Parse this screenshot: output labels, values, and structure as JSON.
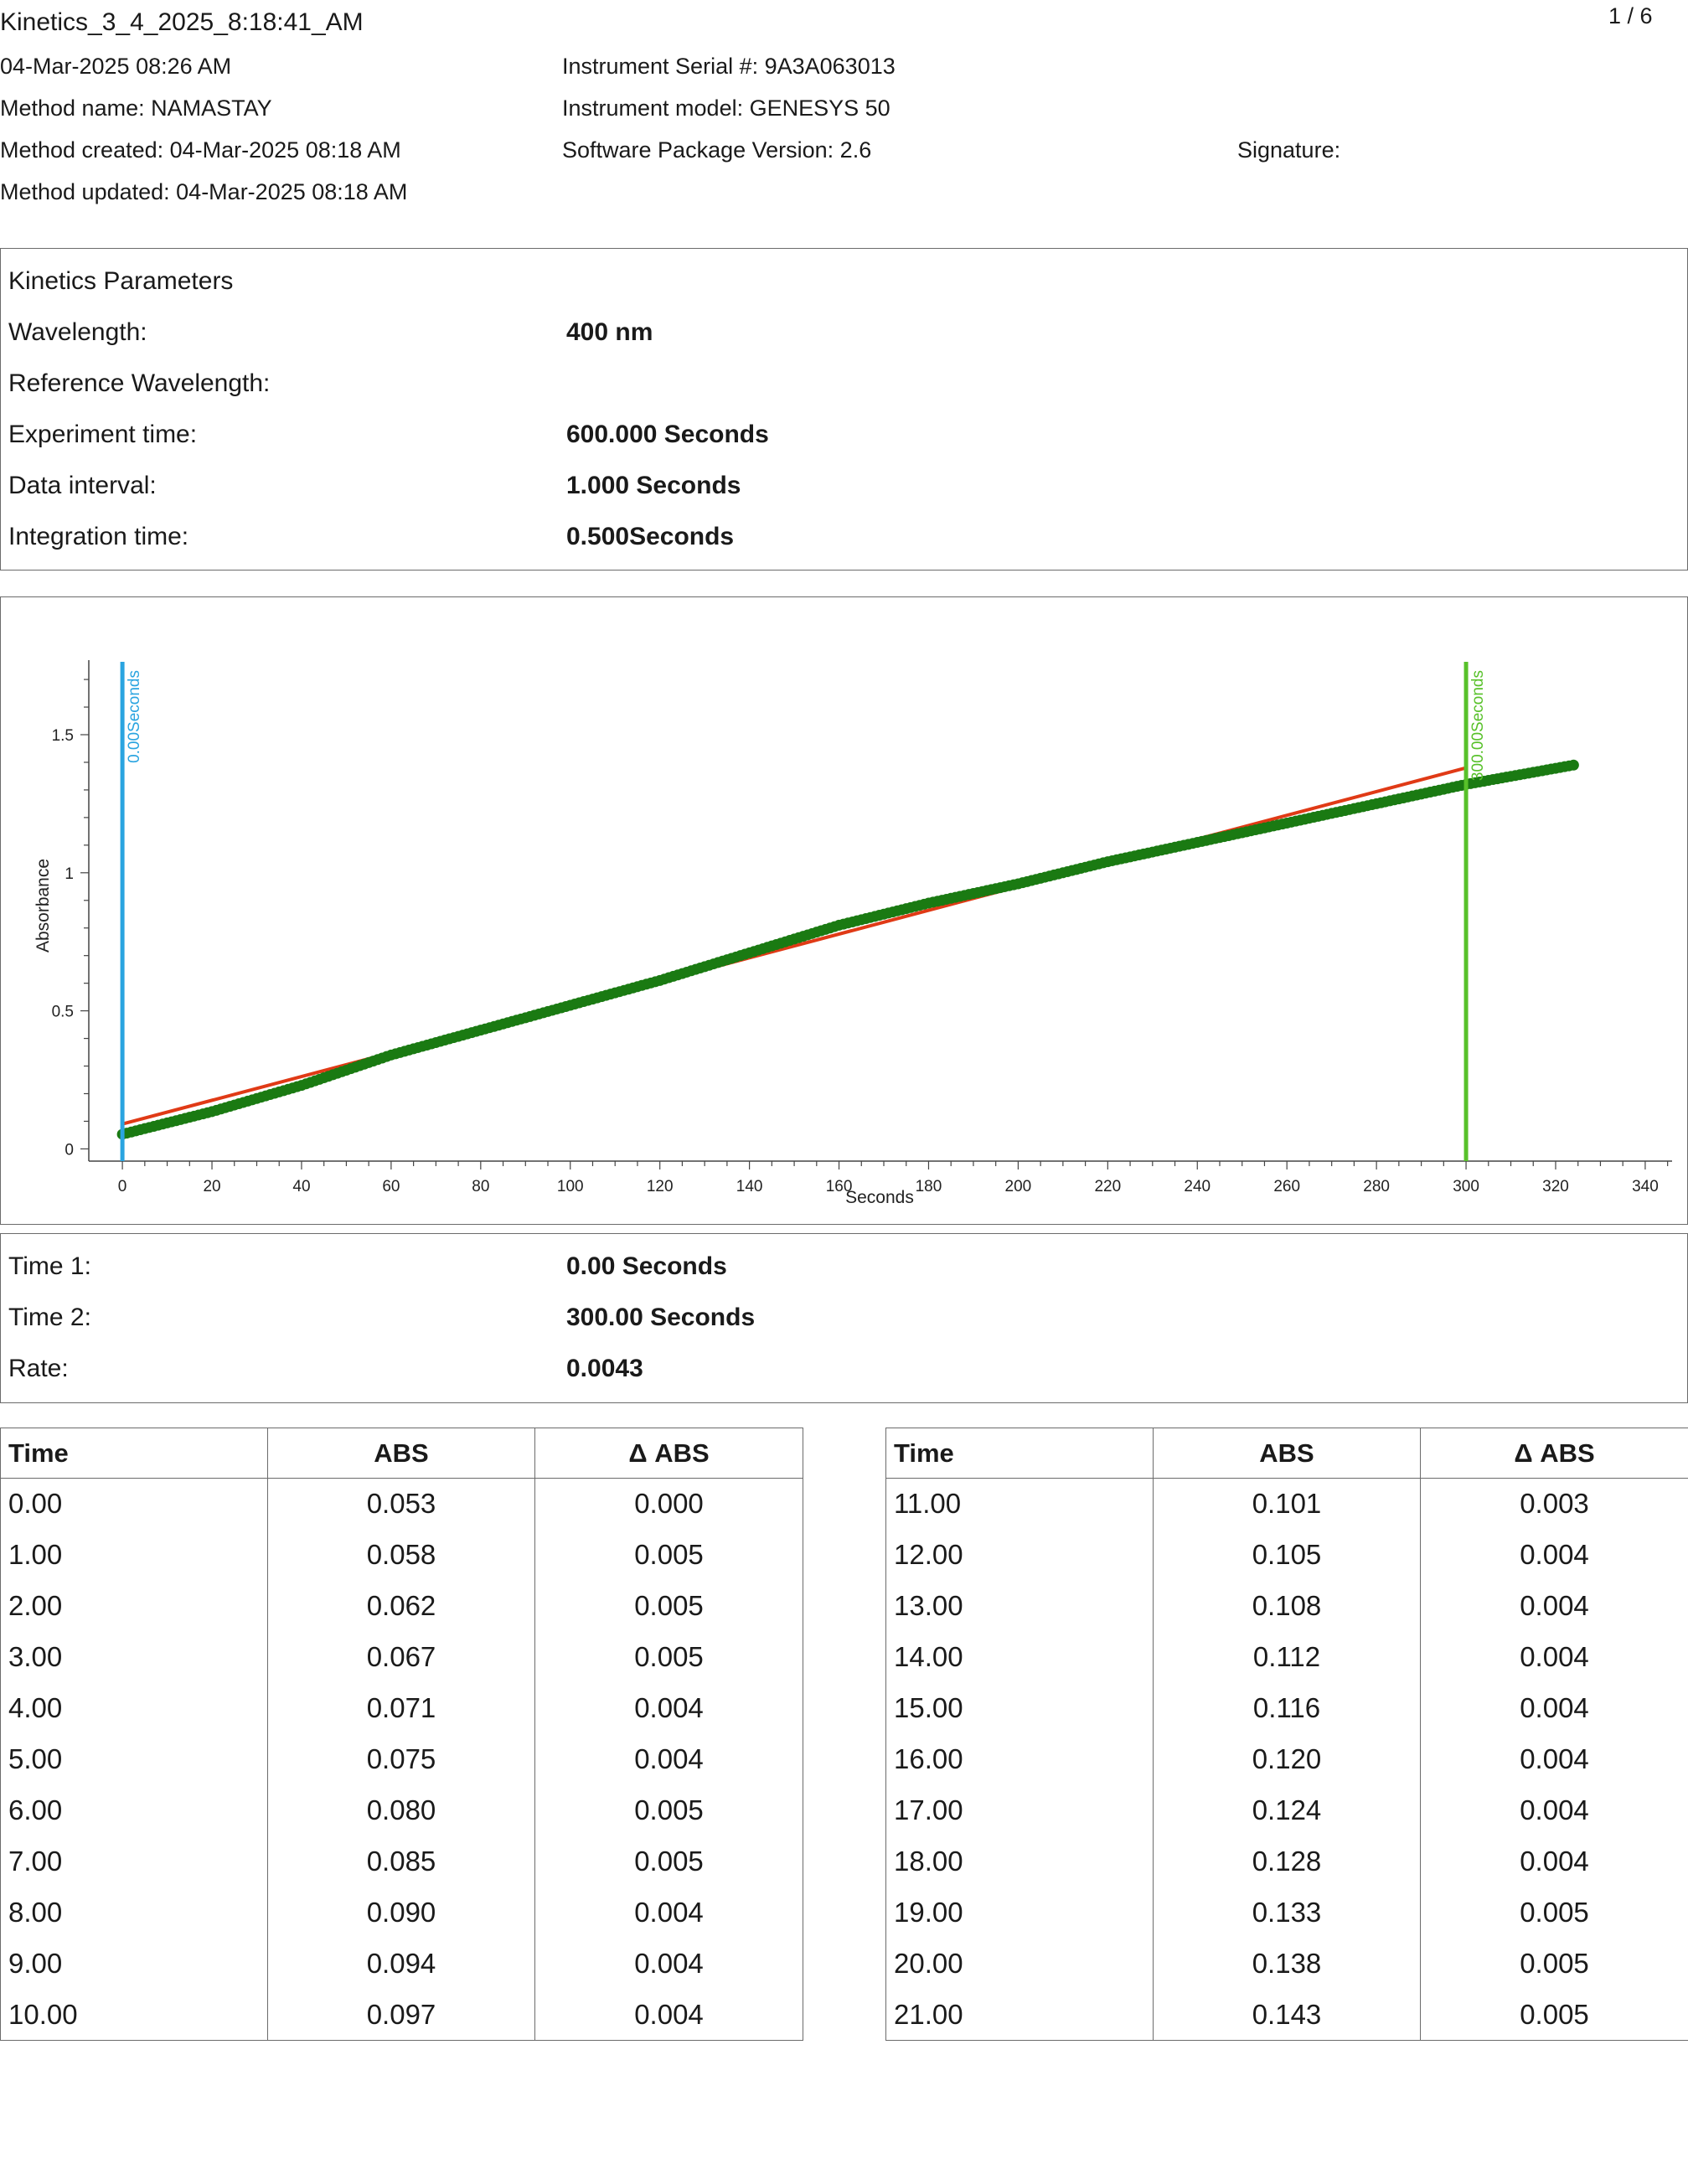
{
  "header": {
    "file_title": "Kinetics_3_4_2025_8:18:41_AM",
    "page_number": "1 / 6",
    "datetime": "04-Mar-2025 08:26 AM",
    "method_name": "Method name: NAMASTAY",
    "method_created": "Method created: 04-Mar-2025 08:18 AM",
    "method_updated": "Method updated: 04-Mar-2025 08:18 AM",
    "instrument_serial": "Instrument Serial #: 9A3A063013",
    "instrument_model": "Instrument model: GENESYS 50",
    "software_version": "Software Package Version: 2.6",
    "signature_label": "Signature:"
  },
  "parameters": {
    "heading": "Kinetics Parameters",
    "rows": [
      {
        "label": "Wavelength:",
        "value": "400 nm"
      },
      {
        "label": "Reference Wavelength:",
        "value": ""
      },
      {
        "label": "Experiment time:",
        "value": "600.000 Seconds"
      },
      {
        "label": "Data interval:",
        "value": "1.000 Seconds"
      },
      {
        "label": "Integration time:",
        "value": "0.500Seconds"
      }
    ]
  },
  "chart_data": {
    "type": "scatter",
    "title": "",
    "xlabel": "Seconds",
    "ylabel": "Absorbance",
    "xlim": [
      -7.5,
      346
    ],
    "ylim": [
      -0.02,
      1.77
    ],
    "x_ticks": [
      0,
      20,
      40,
      60,
      80,
      100,
      120,
      140,
      160,
      180,
      200,
      220,
      240,
      260,
      280,
      300,
      320,
      340
    ],
    "y_ticks": [
      0,
      0.5,
      1,
      1.5
    ],
    "y_tick_labels": [
      "0",
      "0.5",
      "1",
      "1.5"
    ],
    "series": [
      {
        "color": "#1a7a12",
        "x_range": [
          0,
          324
        ],
        "profile_x": [
          0,
          20,
          40,
          60,
          80,
          100,
          120,
          140,
          160,
          180,
          200,
          220,
          240,
          260,
          280,
          300,
          324
        ],
        "profile_y": [
          0.053,
          0.135,
          0.23,
          0.34,
          0.43,
          0.52,
          0.61,
          0.71,
          0.81,
          0.89,
          0.96,
          1.04,
          1.11,
          1.18,
          1.25,
          1.32,
          1.39
        ]
      }
    ],
    "fit_line": {
      "color": "#e03a16",
      "x": [
        0,
        300
      ],
      "y": [
        0.09,
        1.38
      ]
    },
    "markers": [
      {
        "x": 0,
        "label": "0.00Seconds",
        "color": "#2aa4e0"
      },
      {
        "x": 300,
        "label": "300.00Seconds",
        "color": "#58c12a"
      }
    ],
    "grid": false
  },
  "results": {
    "rows": [
      {
        "label": "Time 1:",
        "value": "0.00 Seconds"
      },
      {
        "label": "Time 2:",
        "value": "300.00 Seconds"
      },
      {
        "label": "Rate:",
        "value": "0.0043"
      }
    ]
  },
  "tables": {
    "columns": [
      "Time",
      "ABS",
      "Δ ABS"
    ],
    "left": [
      [
        "0.00",
        "0.053",
        "0.000"
      ],
      [
        "1.00",
        "0.058",
        "0.005"
      ],
      [
        "2.00",
        "0.062",
        "0.005"
      ],
      [
        "3.00",
        "0.067",
        "0.005"
      ],
      [
        "4.00",
        "0.071",
        "0.004"
      ],
      [
        "5.00",
        "0.075",
        "0.004"
      ],
      [
        "6.00",
        "0.080",
        "0.005"
      ],
      [
        "7.00",
        "0.085",
        "0.005"
      ],
      [
        "8.00",
        "0.090",
        "0.004"
      ],
      [
        "9.00",
        "0.094",
        "0.004"
      ],
      [
        "10.00",
        "0.097",
        "0.004"
      ]
    ],
    "right": [
      [
        "11.00",
        "0.101",
        "0.003"
      ],
      [
        "12.00",
        "0.105",
        "0.004"
      ],
      [
        "13.00",
        "0.108",
        "0.004"
      ],
      [
        "14.00",
        "0.112",
        "0.004"
      ],
      [
        "15.00",
        "0.116",
        "0.004"
      ],
      [
        "16.00",
        "0.120",
        "0.004"
      ],
      [
        "17.00",
        "0.124",
        "0.004"
      ],
      [
        "18.00",
        "0.128",
        "0.004"
      ],
      [
        "19.00",
        "0.133",
        "0.005"
      ],
      [
        "20.00",
        "0.138",
        "0.005"
      ],
      [
        "21.00",
        "0.143",
        "0.005"
      ]
    ]
  }
}
